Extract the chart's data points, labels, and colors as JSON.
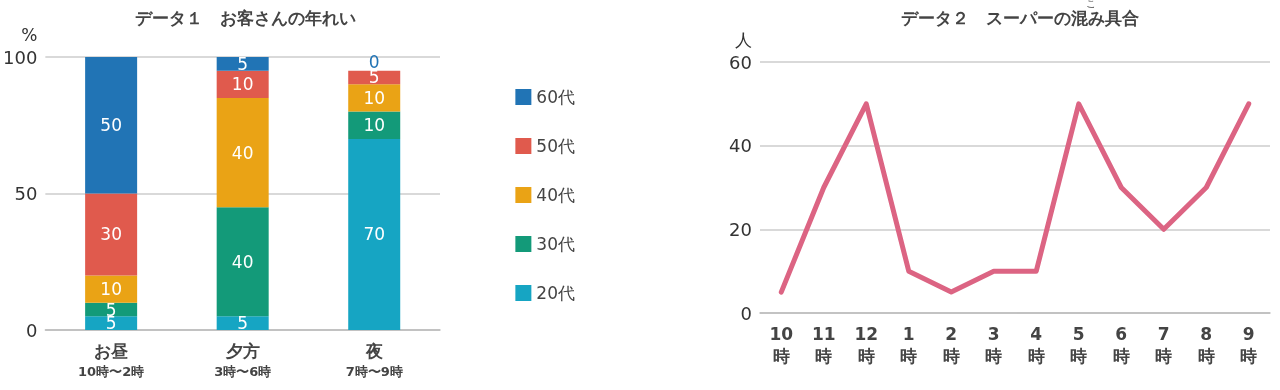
{
  "chart_data": [
    {
      "type": "bar",
      "title": "データ１　お客さんの年れい",
      "ylabel": "%",
      "categories": [
        "お昼\n10時〜2時",
        "夕方\n3時〜6時",
        "夜\n7時〜9時"
      ],
      "stacked": true,
      "data_labels": true,
      "ylim": [
        0,
        100
      ],
      "yticks": [
        0,
        50,
        100
      ],
      "grid": "y",
      "legend": "right",
      "series": [
        {
          "name": "20代",
          "color": "#16a5c3",
          "values": [
            5,
            5,
            70
          ]
        },
        {
          "name": "30代",
          "color": "#139a79",
          "values": [
            5,
            40,
            10
          ]
        },
        {
          "name": "40代",
          "color": "#eaa315",
          "values": [
            10,
            40,
            10
          ]
        },
        {
          "name": "50代",
          "color": "#e05a4d",
          "values": [
            30,
            10,
            5
          ]
        },
        {
          "name": "60代",
          "color": "#2174b5",
          "values": [
            50,
            5,
            0
          ]
        }
      ]
    },
    {
      "type": "line",
      "title": "データ２　スーパーの混み具合",
      "ylabel": "人",
      "annotations": [
        "こ"
      ],
      "categories": [
        "10\n時",
        "11\n時",
        "12\n時",
        "1\n時",
        "2\n時",
        "3\n時",
        "4\n時",
        "5\n時",
        "6\n時",
        "7\n時",
        "8\n時",
        "9\n時"
      ],
      "ylim": [
        0,
        60
      ],
      "yticks": [
        0,
        20,
        40,
        60
      ],
      "grid": "y",
      "legend": false,
      "marker": "none",
      "line_style": "solid",
      "series": [
        {
          "color": "#dc6483",
          "values": [
            5,
            30,
            50,
            10,
            5,
            10,
            10,
            50,
            30,
            20,
            30,
            50
          ]
        }
      ]
    }
  ]
}
